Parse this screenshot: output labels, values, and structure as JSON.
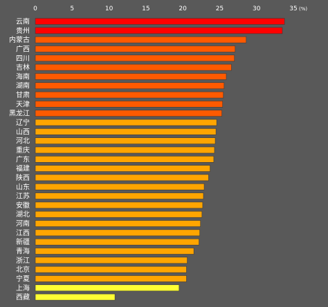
{
  "chart_data": {
    "type": "bar",
    "orientation": "horizontal",
    "unit": "(%)",
    "xlim": [
      0,
      35
    ],
    "x_ticks": [
      "0",
      "5",
      "10",
      "15",
      "20",
      "25",
      "30",
      "35"
    ],
    "grid": false,
    "categories": [
      "云南",
      "贵州",
      "内蒙古",
      "广西",
      "四川",
      "吉林",
      "海南",
      "湖南",
      "甘肃",
      "天津",
      "黑龙江",
      "辽宁",
      "山西",
      "河北",
      "重庆",
      "广东",
      "福建",
      "陕西",
      "山东",
      "江苏",
      "安徽",
      "湖北",
      "河南",
      "江西",
      "新疆",
      "青海",
      "浙江",
      "北京",
      "宁夏",
      "上海",
      "西藏"
    ],
    "values": [
      33.8,
      33.5,
      28.6,
      27.1,
      27.0,
      26.6,
      25.9,
      25.6,
      25.5,
      25.4,
      25.3,
      24.6,
      24.5,
      24.4,
      24.3,
      24.2,
      23.7,
      23.5,
      22.9,
      22.8,
      22.7,
      22.6,
      22.4,
      22.3,
      22.2,
      21.5,
      20.6,
      20.5,
      20.5,
      19.5,
      10.8
    ],
    "bar_colors": [
      "#ff0000",
      "#ff0000",
      "#ff5a00",
      "#ff5a00",
      "#ff5a00",
      "#ff5a00",
      "#ff5a00",
      "#ff5a00",
      "#ff5a00",
      "#ff5a00",
      "#ff5a00",
      "#ffa500",
      "#ffa500",
      "#ffa500",
      "#ffa500",
      "#ffa500",
      "#ffa500",
      "#ffa500",
      "#ffa500",
      "#ffa500",
      "#ffa500",
      "#ffa500",
      "#ffa500",
      "#ffa500",
      "#ffa500",
      "#ffa500",
      "#ffa500",
      "#ffa500",
      "#ffa500",
      "#ffff33",
      "#ffff33"
    ],
    "background_color": "#595959",
    "text_color": "#ffffff"
  }
}
